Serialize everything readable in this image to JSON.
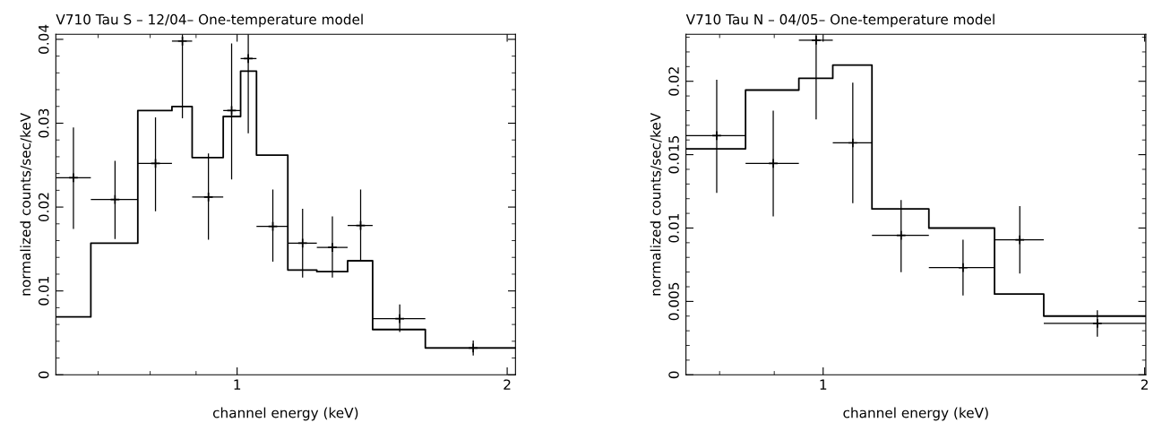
{
  "chart_data": [
    {
      "type": "scatter",
      "title": "V710 Tau S – 12/04– One-temperature model",
      "xlabel": "channel energy (keV)",
      "ylabel": "normalized counts/sec/keV",
      "log": "x",
      "grid": false,
      "xlim": [
        0.628,
        2.043
      ],
      "xticks": [
        1,
        2
      ],
      "ylim": [
        0,
        0.0406
      ],
      "yticks": [
        0,
        0.01,
        0.02,
        0.03,
        0.04
      ],
      "series": [
        {
          "type": "step",
          "color": "#000000",
          "x": [
            0.628,
            0.687,
            0.775,
            0.846,
            0.891,
            0.965,
            1.009,
            1.051,
            1.139,
            1.227,
            1.328,
            1.416,
            1.621,
            2.043
          ],
          "values": [
            0.0069,
            0.0157,
            0.0315,
            0.032,
            0.0259,
            0.0308,
            0.0362,
            0.0262,
            0.0125,
            0.0123,
            0.0136,
            0.0054,
            0.0032,
            0.0032
          ]
        },
        {
          "type": "scatter",
          "marker": "cross",
          "color": "#000000",
          "x": [
            0.657,
            0.731,
            0.811,
            0.869,
            0.929,
            0.986,
            1.029,
            1.096,
            1.183,
            1.277,
            1.373,
            1.518,
            1.833
          ],
          "values": [
            0.0235,
            0.0209,
            0.0252,
            0.0398,
            0.0212,
            0.0315,
            0.0377,
            0.0177,
            0.0157,
            0.0152,
            0.0178,
            0.0067,
            0.0032
          ],
          "errors": [
            [
              0.0174,
              0.0295
            ],
            [
              0.0162,
              0.0255
            ],
            [
              0.0195,
              0.0307
            ],
            [
              0.0306,
              0.0406
            ],
            [
              0.0161,
              0.0264
            ],
            [
              0.0233,
              0.0395
            ],
            [
              0.0288,
              0.0406
            ],
            [
              0.0135,
              0.0221
            ],
            [
              0.0116,
              0.0198
            ],
            [
              0.0116,
              0.0189
            ],
            [
              0.0135,
              0.0221
            ],
            [
              0.0051,
              0.0084
            ],
            [
              0.0023,
              0.0041
            ]
          ],
          "xerrors": [
            [
              0.628,
              0.687
            ],
            [
              0.687,
              0.775
            ],
            [
              0.775,
              0.846
            ],
            [
              0.846,
              0.891
            ],
            [
              0.891,
              0.965
            ],
            [
              0.965,
              1.009
            ],
            [
              1.009,
              1.051
            ],
            [
              1.051,
              1.139
            ],
            [
              1.139,
              1.227
            ],
            [
              1.227,
              1.328
            ],
            [
              1.328,
              1.416
            ],
            [
              1.416,
              1.621
            ],
            [
              1.621,
              2.043
            ]
          ]
        }
      ]
    },
    {
      "type": "scatter",
      "title": "V710 Tau N – 04/05– One-temperature model",
      "xlabel": "channel energy (keV)",
      "ylabel": "normalized counts/sec/keV",
      "log": "x",
      "grid": false,
      "xlim": [
        0.744,
        2.005
      ],
      "xticks": [
        1,
        2
      ],
      "ylim": [
        0,
        0.0232
      ],
      "yticks": [
        0,
        0.005,
        0.01,
        0.015,
        0.02
      ],
      "series": [
        {
          "type": "step",
          "color": "#000000",
          "x": [
            0.744,
            0.846,
            0.949,
            1.021,
            1.111,
            1.256,
            1.447,
            1.609,
            2.005
          ],
          "values": [
            0.0154,
            0.0194,
            0.0202,
            0.0211,
            0.0113,
            0.01,
            0.0055,
            0.004,
            0.004
          ]
        },
        {
          "type": "scatter",
          "marker": "cross",
          "color": "#000000",
          "x": [
            0.795,
            0.898,
            0.985,
            1.066,
            1.183,
            1.352,
            1.528,
            1.806
          ],
          "values": [
            0.0163,
            0.0144,
            0.0228,
            0.0158,
            0.0095,
            0.0073,
            0.0092,
            0.0035
          ],
          "errors": [
            [
              0.0124,
              0.0201
            ],
            [
              0.0108,
              0.018
            ],
            [
              0.0174,
              0.0232
            ],
            [
              0.0117,
              0.0199
            ],
            [
              0.007,
              0.0119
            ],
            [
              0.0054,
              0.0092
            ],
            [
              0.0069,
              0.0115
            ],
            [
              0.0026,
              0.0044
            ]
          ],
          "xerrors": [
            [
              0.744,
              0.846
            ],
            [
              0.846,
              0.949
            ],
            [
              0.949,
              1.021
            ],
            [
              1.021,
              1.111
            ],
            [
              1.111,
              1.256
            ],
            [
              1.256,
              1.447
            ],
            [
              1.447,
              1.609
            ],
            [
              1.609,
              2.005
            ]
          ]
        }
      ]
    }
  ]
}
